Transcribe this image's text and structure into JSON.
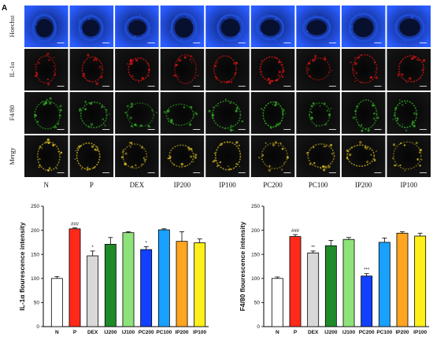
{
  "figure": {
    "panel_label": "A",
    "row_labels": [
      "Hoechst",
      "IL-1α",
      "F4/80",
      "Mergy"
    ],
    "column_labels": [
      "N",
      "P",
      "DEX",
      "IP200",
      "IP100",
      "PC200",
      "PC100",
      "IP200",
      "IP100"
    ],
    "row_colors": [
      "#1f4fd8",
      "#c81414",
      "#2ea320",
      "#c8b020"
    ]
  },
  "chart_data": [
    {
      "type": "bar",
      "title": "",
      "xlabel": "",
      "ylabel": "IL-1α flourescence intensity",
      "categories": [
        "N",
        "P",
        "DEX",
        "IJ200",
        "IJ100",
        "PC200",
        "PC100",
        "IP200",
        "IP100"
      ],
      "values": [
        100,
        203,
        147,
        171,
        195,
        160,
        201,
        177,
        174
      ],
      "errors": [
        4,
        2,
        10,
        14,
        2,
        6,
        2,
        20,
        8
      ],
      "colors": [
        "#ffffff",
        "#ff2a1a",
        "#d8d8d8",
        "#1f8a2a",
        "#8ee27a",
        "#1240ff",
        "#1aa0ff",
        "#ffa51f",
        "#ffef1a"
      ],
      "annotations": [
        "",
        "###",
        "*",
        "",
        "",
        "*",
        "",
        "",
        ""
      ],
      "ylim": [
        0,
        250
      ],
      "yticks": [
        0,
        50,
        100,
        150,
        200,
        250
      ]
    },
    {
      "type": "bar",
      "title": "",
      "xlabel": "",
      "ylabel": "F4/80 flourescence intensity",
      "categories": [
        "N",
        "P",
        "DEX",
        "IJ200",
        "IJ100",
        "PC200",
        "PC100",
        "IP200",
        "IP100"
      ],
      "values": [
        100,
        187,
        153,
        168,
        181,
        105,
        175,
        194,
        188
      ],
      "errors": [
        3,
        4,
        4,
        11,
        4,
        5,
        9,
        3,
        6
      ],
      "colors": [
        "#ffffff",
        "#ff2a1a",
        "#d8d8d8",
        "#1f8a2a",
        "#8ee27a",
        "#1240ff",
        "#1aa0ff",
        "#ffa51f",
        "#ffef1a"
      ],
      "annotations": [
        "",
        "###",
        "**",
        "",
        "",
        "***",
        "",
        "",
        ""
      ],
      "ylim": [
        0,
        250
      ],
      "yticks": [
        0,
        50,
        100,
        150,
        200,
        250
      ]
    }
  ]
}
